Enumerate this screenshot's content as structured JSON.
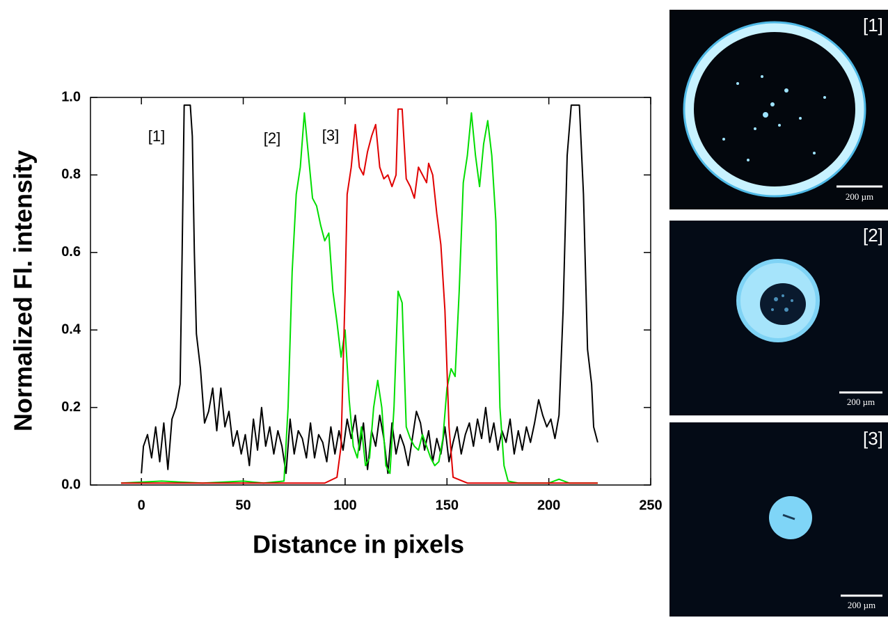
{
  "chart_data": {
    "type": "line",
    "xlabel": "Distance in pixels",
    "ylabel": "Normalized Fl. intensity",
    "xlim": [
      -25,
      250
    ],
    "ylim": [
      0,
      1
    ],
    "xticks": [
      0,
      50,
      100,
      150,
      200,
      250
    ],
    "yticks": [
      {
        "value": 0,
        "label": "0.0"
      },
      0.2,
      0.4,
      0.6,
      0.8,
      {
        "value": 1,
        "label": "1.0"
      }
    ],
    "series": [
      {
        "name": "[1]",
        "color": "#000000",
        "x": [
          0,
          1,
          3,
          5,
          7,
          9,
          11,
          13,
          15,
          17,
          19,
          20,
          21,
          24,
          25,
          26,
          27,
          29,
          31,
          33,
          35,
          37,
          39,
          41,
          43,
          45,
          47,
          49,
          51,
          53,
          55,
          57,
          59,
          61,
          63,
          65,
          67,
          69,
          71,
          73,
          75,
          77,
          79,
          81,
          83,
          85,
          87,
          89,
          91,
          93,
          95,
          97,
          99,
          101,
          103,
          105,
          107,
          109,
          111,
          113,
          115,
          117,
          119,
          121,
          123,
          125,
          127,
          129,
          131,
          133,
          135,
          137,
          139,
          141,
          143,
          145,
          147,
          149,
          151,
          153,
          155,
          157,
          159,
          161,
          163,
          165,
          167,
          169,
          171,
          173,
          175,
          177,
          179,
          181,
          183,
          185,
          187,
          189,
          191,
          193,
          195,
          197,
          199,
          201,
          203,
          205,
          207,
          209,
          211,
          215,
          217,
          219,
          221,
          222,
          224
        ],
        "values": [
          0.03,
          0.1,
          0.13,
          0.07,
          0.15,
          0.06,
          0.16,
          0.04,
          0.17,
          0.2,
          0.26,
          0.6,
          0.98,
          0.98,
          0.9,
          0.6,
          0.39,
          0.3,
          0.16,
          0.19,
          0.25,
          0.14,
          0.25,
          0.15,
          0.19,
          0.1,
          0.14,
          0.08,
          0.13,
          0.05,
          0.17,
          0.09,
          0.2,
          0.1,
          0.15,
          0.08,
          0.14,
          0.1,
          0.03,
          0.17,
          0.08,
          0.14,
          0.12,
          0.07,
          0.16,
          0.07,
          0.13,
          0.11,
          0.06,
          0.15,
          0.08,
          0.14,
          0.09,
          0.17,
          0.12,
          0.18,
          0.09,
          0.16,
          0.04,
          0.14,
          0.1,
          0.18,
          0.12,
          0.03,
          0.16,
          0.08,
          0.13,
          0.1,
          0.05,
          0.12,
          0.19,
          0.16,
          0.09,
          0.14,
          0.06,
          0.12,
          0.08,
          0.15,
          0.06,
          0.11,
          0.15,
          0.08,
          0.13,
          0.16,
          0.1,
          0.17,
          0.12,
          0.2,
          0.11,
          0.16,
          0.09,
          0.14,
          0.11,
          0.17,
          0.08,
          0.14,
          0.09,
          0.15,
          0.11,
          0.16,
          0.22,
          0.18,
          0.15,
          0.17,
          0.12,
          0.18,
          0.45,
          0.85,
          0.98,
          0.98,
          0.75,
          0.35,
          0.26,
          0.15,
          0.11
        ]
      },
      {
        "name": "[2]",
        "color": "#00dd00",
        "x": [
          -10,
          10,
          30,
          50,
          60,
          70,
          72,
          74,
          76,
          78,
          80,
          82,
          84,
          86,
          88,
          90,
          92,
          94,
          96,
          98,
          100,
          102,
          104,
          106,
          108,
          110,
          112,
          114,
          116,
          118,
          120,
          122,
          124,
          126,
          128,
          130,
          132,
          134,
          136,
          138,
          140,
          142,
          144,
          146,
          148,
          150,
          152,
          154,
          156,
          158,
          160,
          162,
          164,
          166,
          168,
          170,
          172,
          174,
          176,
          178,
          180,
          185,
          200,
          205,
          210,
          224
        ],
        "values": [
          0.005,
          0.01,
          0.005,
          0.01,
          0.005,
          0.01,
          0.2,
          0.55,
          0.75,
          0.82,
          0.96,
          0.85,
          0.74,
          0.72,
          0.67,
          0.63,
          0.65,
          0.5,
          0.42,
          0.33,
          0.4,
          0.22,
          0.1,
          0.07,
          0.15,
          0.05,
          0.07,
          0.2,
          0.27,
          0.2,
          0.05,
          0.03,
          0.2,
          0.5,
          0.47,
          0.15,
          0.12,
          0.1,
          0.09,
          0.13,
          0.1,
          0.07,
          0.05,
          0.06,
          0.12,
          0.25,
          0.3,
          0.28,
          0.5,
          0.78,
          0.85,
          0.96,
          0.85,
          0.77,
          0.88,
          0.94,
          0.85,
          0.68,
          0.2,
          0.05,
          0.01,
          0.005,
          0.005,
          0.015,
          0.005,
          0.005
        ]
      },
      {
        "name": "[3]",
        "color": "#e00000",
        "x": [
          -10,
          80,
          90,
          96,
          98,
          100,
          101,
          103,
          105,
          107,
          109,
          111,
          113,
          115,
          117,
          119,
          121,
          123,
          125,
          126,
          128,
          130,
          132,
          134,
          136,
          138,
          140,
          141,
          143,
          145,
          147,
          149,
          151,
          153,
          160,
          224
        ],
        "values": [
          0.005,
          0.005,
          0.005,
          0.02,
          0.1,
          0.5,
          0.75,
          0.82,
          0.93,
          0.82,
          0.8,
          0.86,
          0.9,
          0.93,
          0.82,
          0.79,
          0.8,
          0.77,
          0.8,
          0.97,
          0.97,
          0.79,
          0.77,
          0.74,
          0.82,
          0.8,
          0.78,
          0.83,
          0.8,
          0.7,
          0.62,
          0.45,
          0.15,
          0.02,
          0.005,
          0.005
        ]
      }
    ]
  },
  "panels": [
    {
      "label": "[1]",
      "scale": "200 µm"
    },
    {
      "label": "[2]",
      "scale": "200 µm"
    },
    {
      "label": "[3]",
      "scale": "200 µm"
    }
  ]
}
